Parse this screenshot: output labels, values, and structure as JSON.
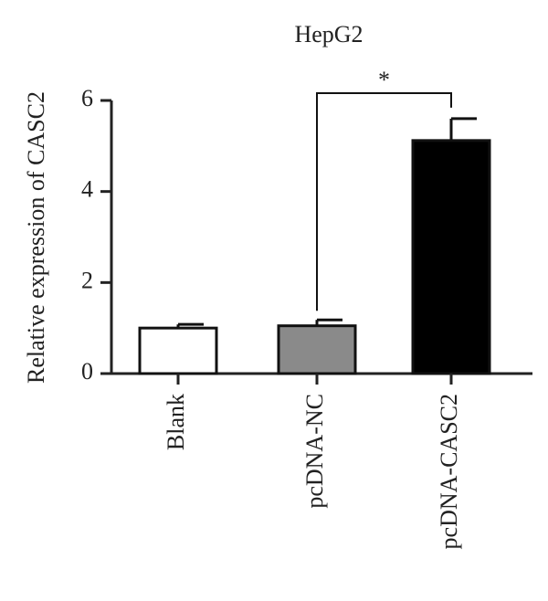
{
  "chart_data": {
    "type": "bar",
    "title": "HepG2",
    "y_label": "Relative expression of CASC2",
    "categories": [
      "Blank",
      "pcDNA-NC",
      "pcDNA-CASC2"
    ],
    "values": [
      1.0,
      1.05,
      5.12
    ],
    "errors": [
      0.08,
      0.13,
      0.48
    ],
    "colors": [
      "#ffffff",
      "#8a8a8a",
      "#000000"
    ],
    "ylim": [
      0,
      6
    ],
    "yticks": [
      0,
      2,
      4,
      6
    ],
    "grid": false,
    "annotation": "*"
  }
}
